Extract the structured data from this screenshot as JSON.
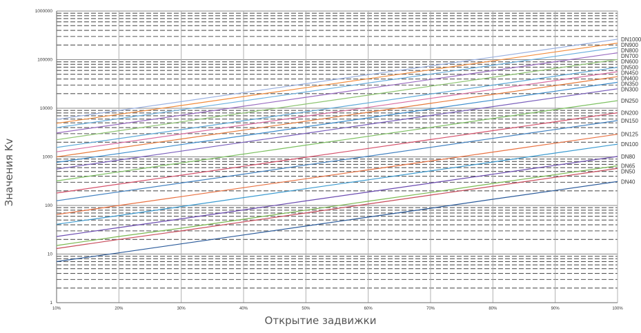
{
  "chart_data": {
    "type": "line",
    "xlabel": "Открытие задвижки",
    "ylabel": "Значения Kv",
    "yscale": "log",
    "ylim": [
      1,
      1000000
    ],
    "xlim": [
      10,
      100
    ],
    "grid": true,
    "x": [
      10,
      20,
      30,
      40,
      50,
      60,
      70,
      80,
      90,
      100
    ],
    "x_tick_labels": [
      "10%",
      "20%",
      "30%",
      "40%",
      "50%",
      "60%",
      "70%",
      "80%",
      "90%",
      "100%"
    ],
    "y_tick_labels": [
      "1",
      "10",
      "100",
      "1000",
      "10000",
      "100000",
      "1000000"
    ],
    "series": [
      {
        "name": "DN1000",
        "color": "#9ab0e0",
        "values": [
          5900,
          9000,
          13700,
          21000,
          32000,
          49000,
          74000,
          113000,
          172000,
          263000
        ]
      },
      {
        "name": "DN900",
        "color": "#f28c3c",
        "values": [
          4900,
          7500,
          11400,
          17400,
          26500,
          40500,
          61800,
          94200,
          144000,
          219000
        ]
      },
      {
        "name": "DN800",
        "color": "#6cb0de",
        "values": [
          4000,
          6100,
          9300,
          14200,
          21600,
          33000,
          50300,
          76700,
          117000,
          178000
        ]
      },
      {
        "name": "DN700",
        "color": "#9a6cc0",
        "values": [
          3100,
          4700,
          7200,
          11000,
          16800,
          25600,
          39000,
          59500,
          90700,
          138000
        ]
      },
      {
        "name": "DN600",
        "color": "#8cc470",
        "values": [
          2250,
          3450,
          5250,
          8000,
          12200,
          18600,
          28400,
          43300,
          66000,
          100500
        ]
      },
      {
        "name": "DN500",
        "color": "#5da8d8",
        "values": [
          1560,
          2380,
          3630,
          5540,
          8440,
          12900,
          19600,
          29900,
          45600,
          69600
        ]
      },
      {
        "name": "DN450",
        "color": "#d86ca0",
        "values": [
          1270,
          1930,
          2950,
          4500,
          6860,
          10450,
          15950,
          24300,
          37100,
          56500
        ]
      },
      {
        "name": "DN400",
        "color": "#e67a3a",
        "values": [
          1000,
          1530,
          2330,
          3550,
          5420,
          8260,
          12600,
          19200,
          29300,
          44700
        ]
      },
      {
        "name": "DN350",
        "color": "#3c8ccc",
        "values": [
          770,
          1170,
          1790,
          2720,
          4150,
          6330,
          9650,
          14700,
          22400,
          34200
        ]
      },
      {
        "name": "DN300",
        "color": "#7a5fbc",
        "values": [
          560,
          860,
          1310,
          2000,
          3050,
          4650,
          7090,
          10800,
          16500,
          25100
        ]
      },
      {
        "name": "DN250",
        "color": "#7cc060",
        "values": [
          320,
          490,
          750,
          1140,
          1740,
          2650,
          4040,
          6160,
          9400,
          14300
        ]
      },
      {
        "name": "DN200",
        "color": "#d4506a",
        "values": [
          180,
          275,
          420,
          640,
          980,
          1490,
          2270,
          3460,
          5280,
          8050
        ]
      },
      {
        "name": "DN150",
        "color": "#4080c0",
        "values": [
          125,
          190,
          290,
          440,
          680,
          1030,
          1570,
          2400,
          3660,
          5580
        ]
      },
      {
        "name": "DN125",
        "color": "#e87040",
        "values": [
          65,
          100,
          152,
          232,
          354,
          540,
          823,
          1254,
          1910,
          2920
        ]
      },
      {
        "name": "DN100",
        "color": "#3a9ad0",
        "values": [
          41,
          62,
          95,
          145,
          221,
          337,
          514,
          784,
          1195,
          1823
        ]
      },
      {
        "name": "DN80",
        "color": "#6a4ab0",
        "values": [
          23,
          35,
          53,
          81,
          124,
          189,
          288,
          439,
          669,
          1020
        ]
      },
      {
        "name": "DN65",
        "color": "#7ab850",
        "values": [
          15,
          23,
          34,
          52,
          80,
          122,
          185,
          283,
          431,
          657
        ]
      },
      {
        "name": "DN50",
        "color": "#c84a5a",
        "values": [
          13,
          20,
          30,
          46,
          70,
          107,
          163,
          249,
          379,
          578
        ]
      },
      {
        "name": "DN40",
        "color": "#2a5a9a",
        "values": [
          7,
          10.6,
          16.2,
          24.7,
          37.7,
          57.5,
          87.6,
          134,
          204,
          311
        ]
      }
    ]
  }
}
